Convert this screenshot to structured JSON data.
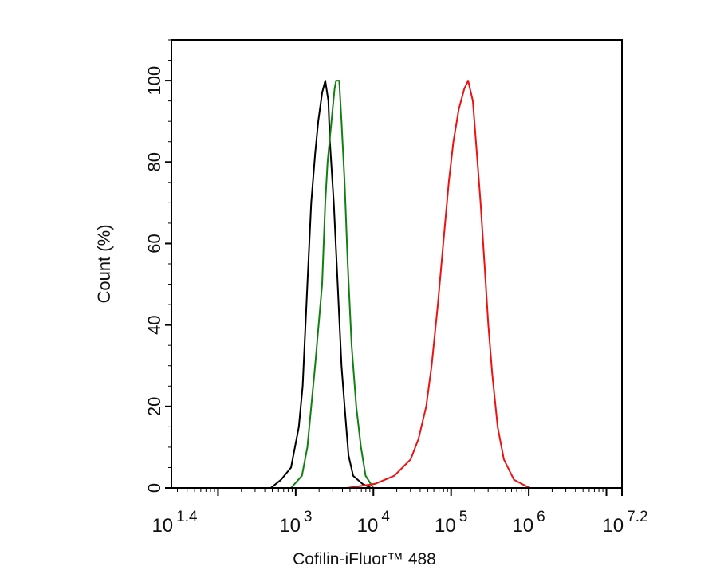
{
  "chart_data": {
    "type": "line",
    "title": "",
    "xlabel": "Cofilin-iFluor™ 488",
    "ylabel": "Count  (%)",
    "xscale": "log10",
    "xlim_log10": [
      1.4,
      7.2
    ],
    "ylim": [
      0,
      110
    ],
    "xticks": [
      {
        "exp": 1.4,
        "base": "10",
        "sup": "1.4"
      },
      {
        "exp": 3,
        "base": "10",
        "sup": "3"
      },
      {
        "exp": 4,
        "base": "10",
        "sup": "4"
      },
      {
        "exp": 5,
        "base": "10",
        "sup": "5"
      },
      {
        "exp": 6,
        "base": "10",
        "sup": "6"
      },
      {
        "exp": 7.2,
        "base": "10",
        "sup": "7.2"
      }
    ],
    "yticks": [
      0,
      20,
      40,
      60,
      80,
      100
    ],
    "grid": false,
    "series": [
      {
        "name": "black",
        "color": "#000000",
        "x_log10": [
          2.68,
          2.81,
          2.94,
          3.04,
          3.09,
          3.15,
          3.2,
          3.25,
          3.29,
          3.34,
          3.38,
          3.42,
          3.44,
          3.49,
          3.54,
          3.59,
          3.63,
          3.68,
          3.74,
          3.86,
          3.97
        ],
        "y": [
          0,
          2,
          5,
          15,
          25,
          50,
          70,
          82,
          90,
          97,
          100,
          95,
          85,
          70,
          50,
          30,
          20,
          8,
          3,
          1,
          0
        ]
      },
      {
        "name": "green",
        "color": "#108010",
        "x_log10": [
          2.94,
          3.08,
          3.15,
          3.25,
          3.34,
          3.38,
          3.41,
          3.46,
          3.5,
          3.52,
          3.56,
          3.59,
          3.63,
          3.67,
          3.72,
          3.78,
          3.84,
          3.9,
          4.0
        ],
        "y": [
          0,
          3,
          10,
          30,
          50,
          70,
          80,
          90,
          98,
          100,
          100,
          90,
          75,
          55,
          35,
          20,
          10,
          3,
          0
        ]
      },
      {
        "name": "red",
        "color": "#ee1111",
        "x_log10": [
          3.66,
          4.02,
          4.27,
          4.48,
          4.58,
          4.68,
          4.75,
          4.83,
          4.9,
          4.97,
          5.03,
          5.1,
          5.17,
          5.22,
          5.28,
          5.32,
          5.38,
          5.43,
          5.48,
          5.53,
          5.6,
          5.68,
          5.81,
          5.96,
          6.02
        ],
        "y": [
          0,
          1,
          3,
          7,
          12,
          20,
          30,
          45,
          60,
          75,
          85,
          93,
          98,
          100,
          95,
          85,
          70,
          55,
          40,
          28,
          15,
          7,
          2,
          0.5,
          0
        ]
      }
    ]
  }
}
